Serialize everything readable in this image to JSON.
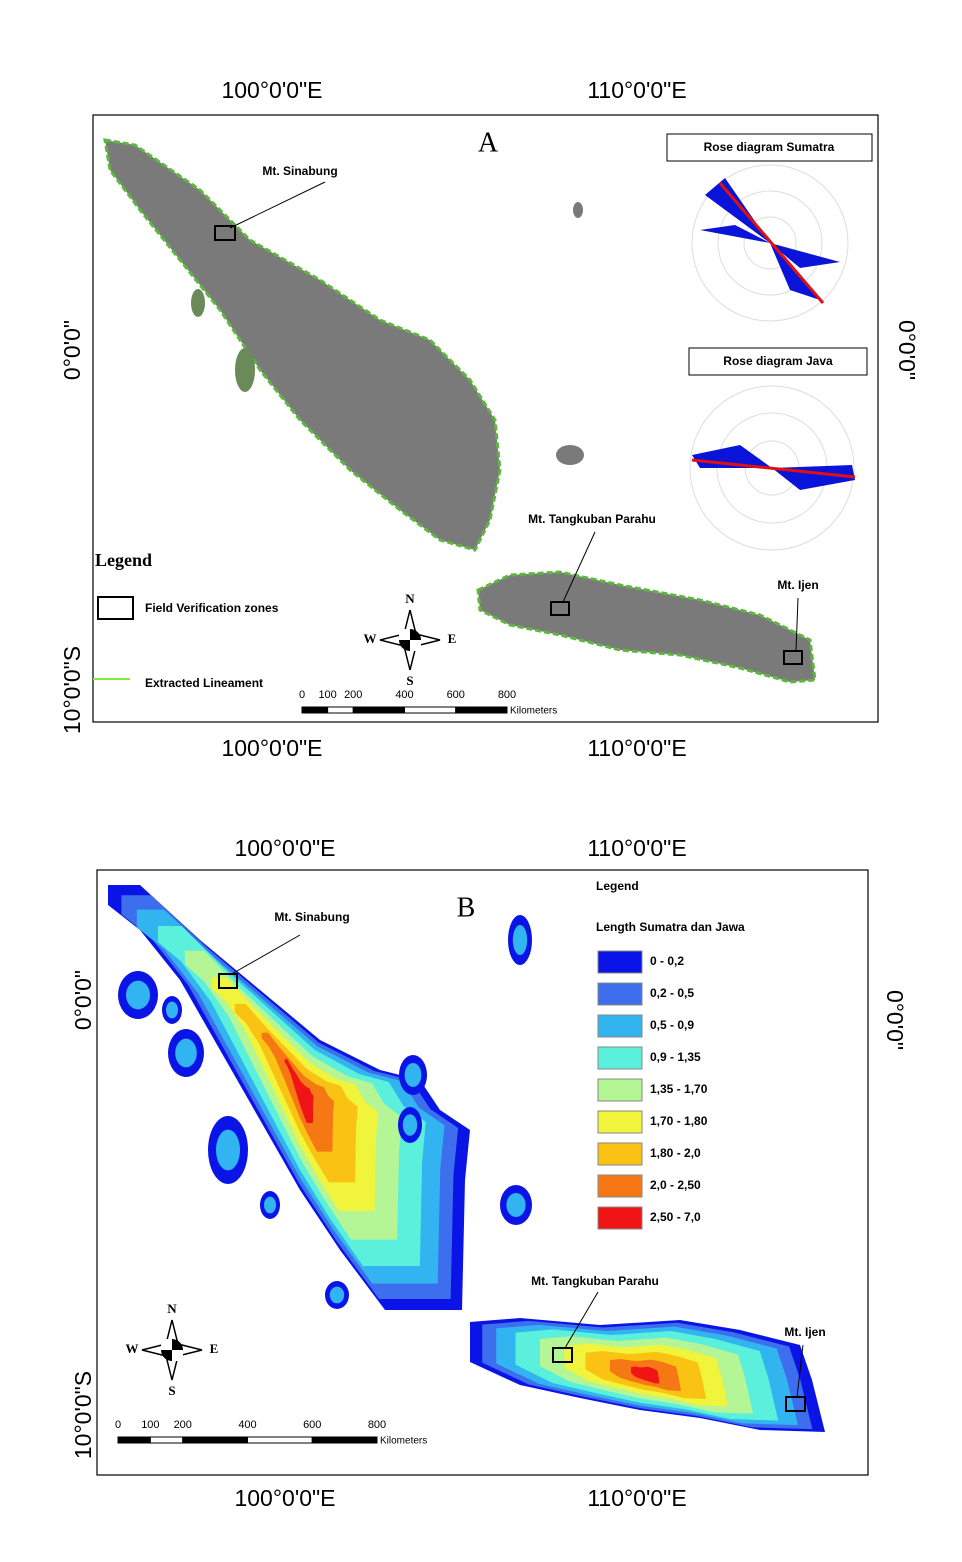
{
  "panel_a": {
    "letter": "A",
    "top_labels": [
      "100°0'0\"E",
      "110°0'0\"E"
    ],
    "bottom_labels": [
      "100°0'0\"E",
      "110°0'0\"E"
    ],
    "left_labels": [
      "0°0'0\"",
      "10°0'0\"S"
    ],
    "right_labels": [
      "0°0'0\""
    ],
    "sites": [
      "Mt. Sinabung",
      "Mt. Tangkuban Parahu",
      "Mt. Ijen"
    ],
    "rose_titles": [
      "Rose diagram Sumatra",
      "Rose diagram Java"
    ],
    "legend": {
      "title": "Legend",
      "items": [
        "Field Verification zones",
        "Extracted Lineament"
      ]
    },
    "compass": [
      "N",
      "S",
      "W",
      "E"
    ],
    "scale": {
      "ticks": [
        0,
        100,
        200,
        400,
        600,
        800
      ],
      "unit": "Kilometers"
    }
  },
  "panel_b": {
    "letter": "B",
    "top_labels": [
      "100°0'0\"E",
      "110°0'0\"E"
    ],
    "bottom_labels": [
      "100°0'0\"E",
      "110°0'0\"E"
    ],
    "left_labels": [
      "0°0'0\"",
      "10°0'0\"S"
    ],
    "right_labels": [
      "0°0'0\""
    ],
    "sites": [
      "Mt. Sinabung",
      "Mt. Tangkuban Parahu",
      "Mt. Ijen"
    ],
    "legend": {
      "title": "Legend",
      "subtitle": "Length Sumatra dan Jawa",
      "classes": [
        {
          "label": "0 - 0,2",
          "color": "#0a14e6"
        },
        {
          "label": "0,2 - 0,5",
          "color": "#3c6eee"
        },
        {
          "label": "0,5 - 0,9",
          "color": "#32b4f0"
        },
        {
          "label": "0,9 - 1,35",
          "color": "#5af0dc"
        },
        {
          "label": "1,35 - 1,70",
          "color": "#b4f596"
        },
        {
          "label": "1,70 - 1,80",
          "color": "#f0f53c"
        },
        {
          "label": "1,80 - 2,0",
          "color": "#fac314"
        },
        {
          "label": "2,0 - 2,50",
          "color": "#f57814"
        },
        {
          "label": "2,50 - 7,0",
          "color": "#f01414"
        }
      ]
    },
    "compass": [
      "N",
      "S",
      "W",
      "E"
    ],
    "scale": {
      "ticks": [
        0,
        100,
        200,
        400,
        600,
        800
      ],
      "unit": "Kilometers"
    }
  }
}
